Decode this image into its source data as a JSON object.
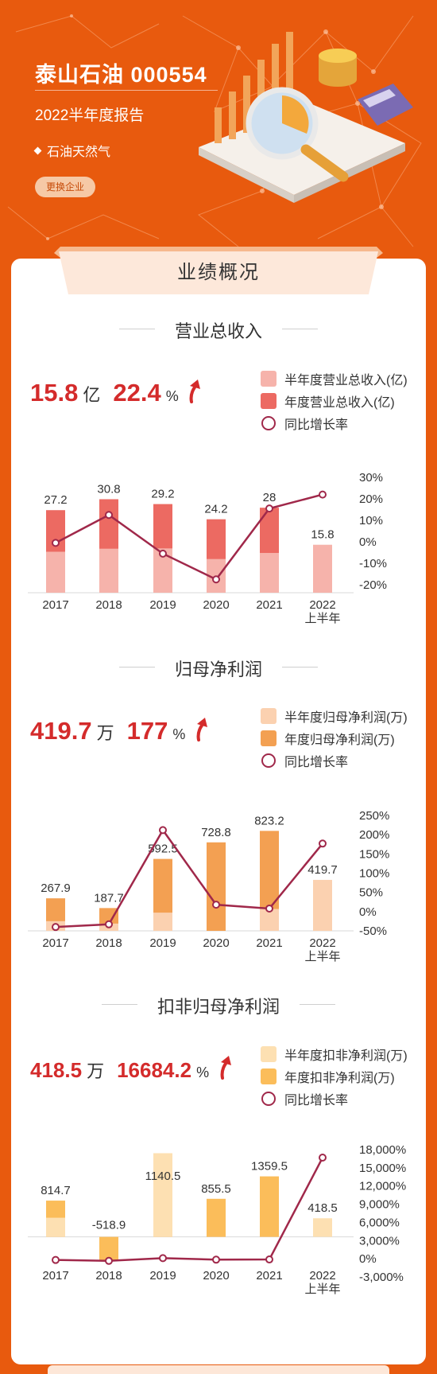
{
  "header": {
    "company": "泰山石油 000554",
    "report": "2022半年度报告",
    "industry": "石油天然气",
    "change_button": "更换企业"
  },
  "overview_title": "业绩概况",
  "colors": {
    "background": "#e85a0e",
    "line": "#a0284a",
    "up_arrow": "#d42b2b"
  },
  "sections": [
    {
      "title": "营业总收入",
      "headline_value": "15.8",
      "headline_unit": "亿",
      "headline_growth": "22.4",
      "growth_unit": "%",
      "legend": [
        "半年度营业总收入(亿)",
        "年度营业总收入(亿)",
        "同比增长率"
      ],
      "colors": {
        "half": "#f6b3ab",
        "annual": "#ec6a62"
      }
    },
    {
      "title": "归母净利润",
      "headline_value": "419.7",
      "headline_unit": "万",
      "headline_growth": "177",
      "growth_unit": "%",
      "legend": [
        "半年度归母净利润(万)",
        "年度归母净利润(万)",
        "同比增长率"
      ],
      "colors": {
        "half": "#fbd1b0",
        "annual": "#f3a052"
      }
    },
    {
      "title": "扣非归母净利润",
      "headline_value": "418.5",
      "headline_unit": "万",
      "headline_growth": "16684.2",
      "growth_unit": "%",
      "legend": [
        "半年度扣非净利润(万)",
        "年度扣非净利润(万)",
        "同比增长率"
      ],
      "colors": {
        "half": "#fde0b2",
        "annual": "#fbbd5a"
      }
    }
  ],
  "chart_data": [
    {
      "type": "bar",
      "categories": [
        "2017",
        "2018",
        "2019",
        "2020",
        "2021",
        "2022 上半年"
      ],
      "series": [
        {
          "name": "半年度营业总收入(亿)",
          "values": [
            13.5,
            14.5,
            14.6,
            11.1,
            13.1,
            15.8
          ]
        },
        {
          "name": "年度营业总收入(亿)",
          "values": [
            27.2,
            30.8,
            29.2,
            24.2,
            28,
            null
          ]
        },
        {
          "name": "同比增长率",
          "values": [
            -0.5,
            12.5,
            -5.5,
            -17.5,
            15.5,
            22
          ]
        }
      ],
      "bar_labels": [
        "27.2",
        "30.8",
        "29.2",
        "24.2",
        "28",
        "15.8"
      ],
      "ylim_left": [
        0,
        38
      ],
      "right_axis": {
        "ticks": [
          "30%",
          "20%",
          "10%",
          "0%",
          "-10%",
          "-20%"
        ],
        "values": [
          30,
          20,
          10,
          0,
          -10,
          -20
        ],
        "ylim": [
          -20,
          30
        ]
      }
    },
    {
      "type": "bar",
      "categories": [
        "2017",
        "2018",
        "2019",
        "2020",
        "2021",
        "2022 上半年"
      ],
      "series": [
        {
          "name": "半年度归母净利润(万)",
          "values": [
            80,
            60,
            150,
            0,
            180,
            419.7
          ]
        },
        {
          "name": "年度归母净利润(万)",
          "values": [
            267.9,
            187.7,
            592.5,
            728.8,
            823.2,
            null
          ]
        },
        {
          "name": "同比增长率",
          "values": [
            -40,
            -33,
            212,
            18,
            8,
            177
          ]
        }
      ],
      "bar_labels": [
        "267.9",
        "187.7",
        "592.5",
        "728.8",
        "823.2",
        "419.7"
      ],
      "ylim_left": [
        0,
        950
      ],
      "right_axis": {
        "ticks": [
          "250%",
          "200%",
          "150%",
          "100%",
          "50%",
          "0%",
          "-50%"
        ],
        "values": [
          250,
          200,
          150,
          100,
          50,
          0,
          -50
        ],
        "ylim": [
          -50,
          250
        ]
      }
    },
    {
      "type": "bar",
      "categories": [
        "2017",
        "2018",
        "2019",
        "2020",
        "2021",
        "2022 上半年"
      ],
      "series": [
        {
          "name": "半年度扣非净利润(万)",
          "values": [
            430,
            0,
            1880,
            0,
            0,
            418.5
          ]
        },
        {
          "name": "年度扣非净利润(万)",
          "values": [
            814.7,
            -518.9,
            1140.5,
            855.5,
            1359.5,
            null
          ]
        },
        {
          "name": "同比增长率",
          "values": [
            -200,
            -350,
            100,
            -150,
            -120,
            16684.2
          ]
        }
      ],
      "bar_labels": [
        "814.7",
        "-518.9",
        "1140.5",
        "855.5",
        "1359.5",
        "418.5"
      ],
      "ylim_left": [
        -900,
        1960
      ],
      "right_axis": {
        "ticks": [
          "18,000%",
          "15,000%",
          "12,000%",
          "9,000%",
          "6,000%",
          "3,000%",
          "0%",
          "-3,000%"
        ],
        "values": [
          18000,
          15000,
          12000,
          9000,
          6000,
          3000,
          0,
          -3000
        ],
        "ylim": [
          -3000,
          18000
        ]
      }
    }
  ]
}
